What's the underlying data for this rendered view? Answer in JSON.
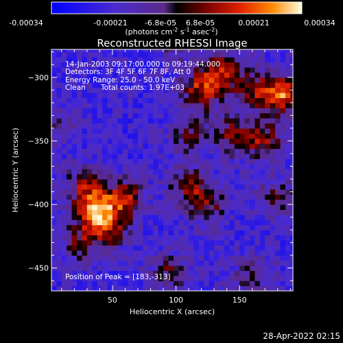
{
  "chart_data": {
    "type": "heatmap",
    "title": "Reconstructed RHESSI Image",
    "xlabel": "Heliocentric X (arcsec)",
    "ylabel": "Heliocentric Y (arcsec)",
    "xlim": [
      2,
      192
    ],
    "ylim": [
      -468,
      -278
    ],
    "x_ticks": [
      50,
      100,
      150
    ],
    "y_ticks": [
      -300,
      -350,
      -400,
      -450
    ],
    "colorbar": {
      "ticks": [
        "-0.00034",
        "-0.00021",
        "-6.8e-05",
        "6.8e-05",
        "0.00021",
        "0.00034"
      ],
      "units_prefix": "(photons cm",
      "units_sup1": "-2",
      "units_mid": " s",
      "units_sup2": "-1",
      "units_mid2": " asec",
      "units_sup3": "-2",
      "units_suffix": ")",
      "range": [
        -0.00034,
        0.00034
      ]
    },
    "annotations": {
      "time_range": "14-Jan-2003 09:17:00.000 to 09:19:44.000",
      "detectors": "Detectors: 3F 4F 5F 6F 7F 8F, Att 0",
      "energy": "Energy Range: 25.0 - 50.0 keV",
      "algorithm": "Clean",
      "total_counts": "Total counts: 1.97E+03",
      "peak": "Position of Peak = [183,-313]"
    },
    "blobs": [
      {
        "x": 120,
        "y": -310,
        "value": 0.00026
      },
      {
        "x": 135,
        "y": -295,
        "value": 0.00024
      },
      {
        "x": 160,
        "y": -310,
        "value": 0.0002
      },
      {
        "x": 183,
        "y": -313,
        "value": 0.00034
      },
      {
        "x": 170,
        "y": -350,
        "value": 0.00022
      },
      {
        "x": 145,
        "y": -345,
        "value": 0.0002
      },
      {
        "x": 110,
        "y": -345,
        "value": 0.00016
      },
      {
        "x": 28,
        "y": -385,
        "value": 0.0002
      },
      {
        "x": 25,
        "y": -430,
        "value": 0.00018
      },
      {
        "x": 37,
        "y": -405,
        "value": 0.00034
      },
      {
        "x": 60,
        "y": -395,
        "value": 0.00026
      },
      {
        "x": 48,
        "y": -420,
        "value": 0.00018
      },
      {
        "x": 110,
        "y": -385,
        "value": 0.0002
      },
      {
        "x": 125,
        "y": -400,
        "value": 0.00018
      },
      {
        "x": 180,
        "y": -395,
        "value": 0.00016
      },
      {
        "x": 95,
        "y": -452,
        "value": 0.00016
      },
      {
        "x": 160,
        "y": -455,
        "value": 0.00014
      },
      {
        "x": 5,
        "y": -335,
        "value": 0.0001
      },
      {
        "x": 100,
        "y": -275,
        "value": 0.0001
      }
    ]
  },
  "footer": {
    "timestamp": "28-Apr-2022 02:15"
  }
}
